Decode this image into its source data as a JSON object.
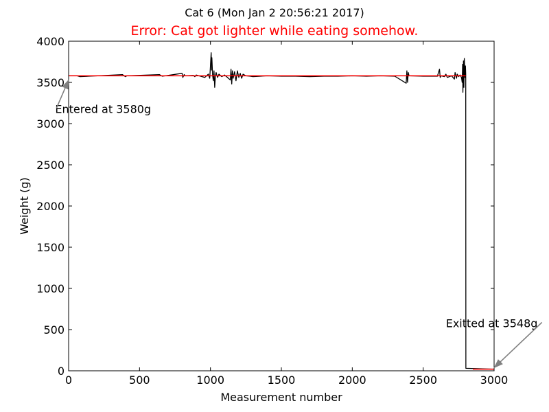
{
  "chart_data": {
    "type": "line",
    "title": "Cat 6 (Mon Jan  2 20:56:21 2017)",
    "subtitle": "Error: Cat got lighter while eating somehow.",
    "subtitle_color": "#ff0000",
    "xlabel": "Measurement number",
    "ylabel": "Weight (g)",
    "xlim": [
      0,
      3000
    ],
    "ylim": [
      0,
      4000
    ],
    "x_ticks": [
      0,
      500,
      1000,
      1500,
      2000,
      2500,
      3000
    ],
    "y_ticks": [
      0,
      500,
      1000,
      1500,
      2000,
      2500,
      3000,
      3500,
      4000
    ],
    "x_tick_labels": [
      "0",
      "500",
      "1000",
      "1500",
      "2000",
      "2500",
      "3000"
    ],
    "y_tick_labels": [
      "0",
      "500",
      "1000",
      "1500",
      "2000",
      "2500",
      "3000",
      "3500",
      "4000"
    ],
    "grid": false,
    "legend": "none",
    "series": [
      {
        "color": "#000000",
        "x": [
          0,
          60,
          80,
          380,
          400,
          410,
          640,
          660,
          800,
          805,
          815,
          820,
          880,
          890,
          900,
          960,
          985,
          995,
          1000,
          1005,
          1008,
          1010,
          1015,
          1020,
          1025,
          1030,
          1035,
          1040,
          1050,
          1060,
          1080,
          1100,
          1140,
          1145,
          1150,
          1155,
          1160,
          1170,
          1180,
          1190,
          1200,
          1210,
          1220,
          1230,
          1250,
          1280,
          1300,
          1400,
          1500,
          1600,
          1700,
          1800,
          1900,
          2000,
          2100,
          2200,
          2300,
          2380,
          2385,
          2390,
          2395,
          2400,
          2500,
          2600,
          2615,
          2620,
          2625,
          2650,
          2660,
          2670,
          2700,
          2720,
          2725,
          2735,
          2740,
          2750,
          2760,
          2770,
          2775,
          2778,
          2780,
          2784,
          2787,
          2790,
          2795,
          2798,
          2800,
          2801,
          3000
        ],
        "y": [
          3580,
          3580,
          3570,
          3595,
          3570,
          3580,
          3595,
          3575,
          3610,
          3560,
          3595,
          3580,
          3585,
          3570,
          3590,
          3560,
          3600,
          3550,
          3700,
          3860,
          3650,
          3800,
          3590,
          3520,
          3640,
          3440,
          3580,
          3620,
          3560,
          3600,
          3570,
          3590,
          3530,
          3660,
          3480,
          3640,
          3550,
          3630,
          3520,
          3640,
          3560,
          3610,
          3550,
          3600,
          3580,
          3575,
          3570,
          3580,
          3575,
          3575,
          3570,
          3575,
          3575,
          3580,
          3575,
          3580,
          3575,
          3490,
          3640,
          3500,
          3620,
          3580,
          3575,
          3575,
          3660,
          3560,
          3580,
          3570,
          3600,
          3560,
          3580,
          3540,
          3620,
          3550,
          3600,
          3570,
          3590,
          3560,
          3500,
          3720,
          3380,
          3760,
          3440,
          3790,
          3560,
          3700,
          3600,
          30,
          20
        ]
      },
      {
        "color": "#ff0000",
        "x": [
          0,
          2800
        ],
        "y": [
          3580,
          3580
        ]
      },
      {
        "color": "#ff0000",
        "x": [
          2850,
          3000
        ],
        "y": [
          20,
          20
        ]
      }
    ],
    "annotations": [
      {
        "text": "Entered at 3580g",
        "x": 0,
        "y": 3580,
        "label_x": -95,
        "label_y": 3130,
        "arrow_color": "#808080"
      },
      {
        "text": "Exitted at 3548g",
        "x": 3000,
        "y": 20,
        "label_x": 2660,
        "label_y": 530,
        "arrow_color": "#808080"
      }
    ]
  }
}
